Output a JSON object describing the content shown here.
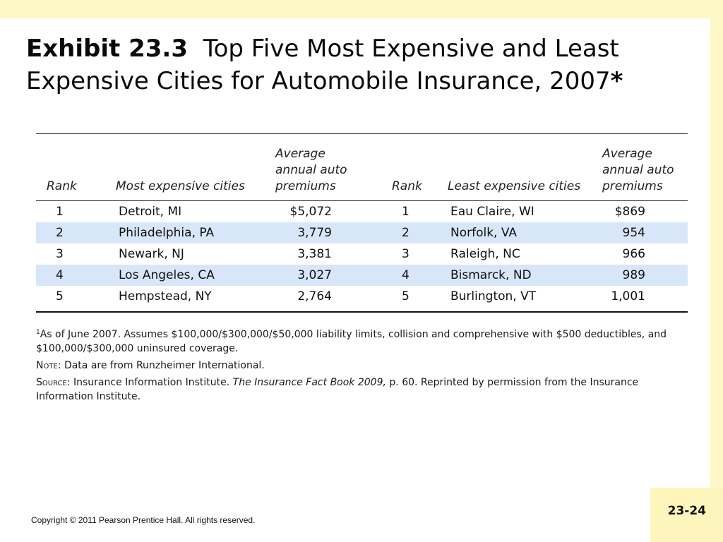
{
  "slide": {
    "title_lead": "Exhibit 23.3",
    "title_rest": "Top Five Most Expensive and Least Expensive Cities for Automobile Insurance, 2007",
    "title_mark": "*",
    "page_number": "23-24",
    "copyright": "Copyright © 2011 Pearson Prentice Hall. All rights reserved."
  },
  "table": {
    "headers": {
      "rank": "Rank",
      "most_expensive": "Most expensive cities",
      "premium_line1": "Average",
      "premium_line2": "annual auto",
      "premium_line3": "premiums",
      "rank2": "Rank",
      "least_expensive": "Least expensive cities"
    },
    "rows": [
      {
        "rank": "1",
        "city": "Detroit, MI",
        "premium": "$5,072",
        "rank2": "1",
        "city2": "Eau Claire, WI",
        "premium2": "$869"
      },
      {
        "rank": "2",
        "city": "Philadelphia, PA",
        "premium": "3,779",
        "rank2": "2",
        "city2": "Norfolk, VA",
        "premium2": "954"
      },
      {
        "rank": "3",
        "city": "Newark, NJ",
        "premium": "3,381",
        "rank2": "3",
        "city2": "Raleigh, NC",
        "premium2": "966"
      },
      {
        "rank": "4",
        "city": "Los Angeles, CA",
        "premium": "3,027",
        "rank2": "4",
        "city2": "Bismarck, ND",
        "premium2": "989"
      },
      {
        "rank": "5",
        "city": "Hempstead, NY",
        "premium": "2,764",
        "rank2": "5",
        "city2": "Burlington, VT",
        "premium2": "1,001"
      }
    ]
  },
  "notes": {
    "footnote_mark": "1",
    "footnote": "As of June 2007. Assumes $100,000/$300,000/$50,000 liability limits, collision and comprehensive with $500 deductibles, and $100,000/$300,000 uninsured coverage.",
    "note_label": "Note",
    "note_text": ": Data are from Runzheimer International.",
    "source_label": "Source",
    "source_text_pre": ": Insurance Information Institute. ",
    "source_title": "The Insurance Fact Book 2009,",
    "source_text_post": " p. 60. Reprinted by permission from the Insurance Information Institute."
  },
  "colors": {
    "frame": "#fef7c6",
    "row_highlight": "#d8e6fa"
  }
}
